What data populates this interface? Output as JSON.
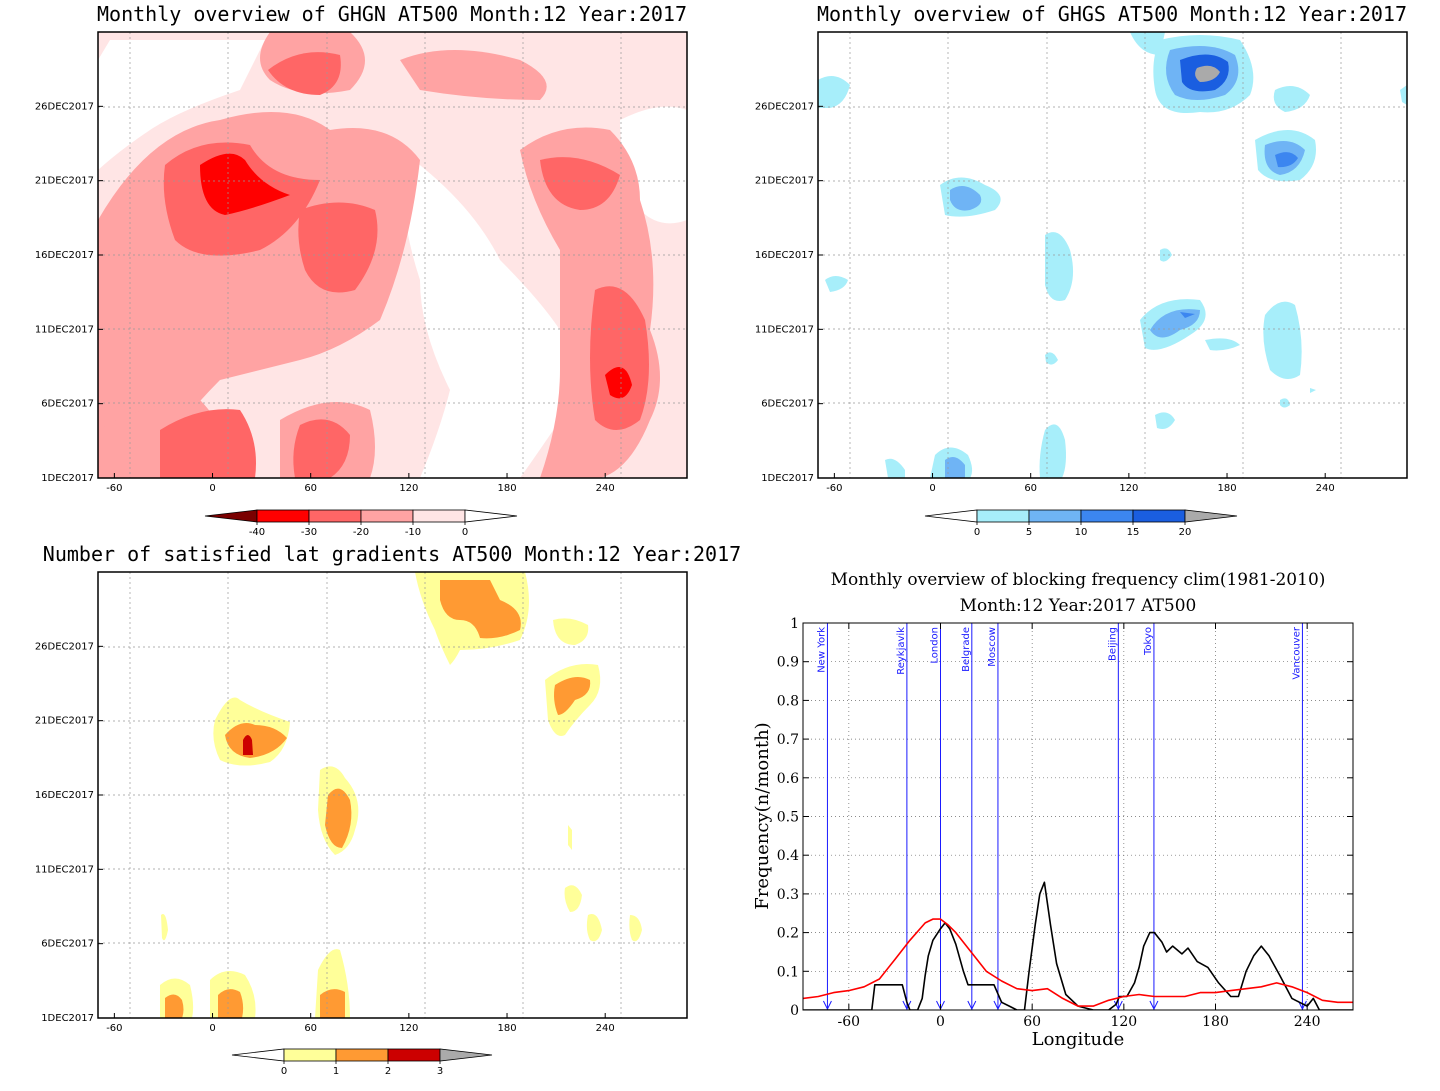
{
  "chart_data": [
    {
      "type": "heatmap",
      "title": "Monthly overview of GHGN AT500 Month:12 Year:2017",
      "x_ticks": [
        "-60",
        "0",
        "60",
        "120",
        "180",
        "240"
      ],
      "y_ticks": [
        "1DEC2017",
        "6DEC2017",
        "11DEC2017",
        "16DEC2017",
        "21DEC2017",
        "26DEC2017"
      ],
      "colorbar": {
        "ticks": [
          "-40",
          "-30",
          "-20",
          "-10",
          "0"
        ],
        "colors": [
          "#7a0000",
          "#ff0000",
          "#ff6666",
          "#ffa3a3",
          "#ffe5e5",
          "#ffffff"
        ]
      },
      "grid": true
    },
    {
      "type": "heatmap",
      "title": "Monthly overview of GHGS AT500 Month:12 Year:2017",
      "x_ticks": [
        "-60",
        "0",
        "60",
        "120",
        "180",
        "240"
      ],
      "y_ticks": [
        "1DEC2017",
        "6DEC2017",
        "11DEC2017",
        "16DEC2017",
        "21DEC2017",
        "26DEC2017"
      ],
      "colorbar": {
        "ticks": [
          "0",
          "5",
          "10",
          "15",
          "20"
        ],
        "colors": [
          "#ffffff",
          "#a7eefa",
          "#6fb4f5",
          "#3c86f0",
          "#1a5ee0",
          "#aaaaaa"
        ]
      },
      "grid": true
    },
    {
      "type": "heatmap",
      "title": "Number of satisfied lat gradients AT500 Month:12 Year:2017",
      "x_ticks": [
        "-60",
        "0",
        "60",
        "120",
        "180",
        "240"
      ],
      "y_ticks": [
        "1DEC2017",
        "6DEC2017",
        "11DEC2017",
        "16DEC2017",
        "21DEC2017",
        "26DEC2017"
      ],
      "colorbar": {
        "ticks": [
          "0",
          "1",
          "2",
          "3"
        ],
        "colors": [
          "#ffffff",
          "#ffff99",
          "#ff9a33",
          "#cc0000",
          "#aaaaaa"
        ]
      },
      "grid": true
    },
    {
      "type": "line",
      "title": "Monthly overview of blocking frequency clim(1981-2010)",
      "subtitle": "Month:12 Year:2017  AT500",
      "xlabel": "Longitude",
      "ylabel": "Frequency(n/month)",
      "xlim": [
        -90,
        270
      ],
      "ylim": [
        0,
        1
      ],
      "x_ticks": [
        "-60",
        "0",
        "60",
        "120",
        "180",
        "240"
      ],
      "y_ticks": [
        "0",
        "0.1",
        "0.2",
        "0.3",
        "0.4",
        "0.5",
        "0.6",
        "0.7",
        "0.8",
        "0.9",
        "1"
      ],
      "grid": true,
      "series": [
        {
          "color": "#000000",
          "x": [
            -90,
            -45,
            -43,
            -35,
            -30,
            -25,
            -22,
            -20,
            -15,
            -12,
            -10,
            -8,
            -5,
            0,
            3,
            6,
            10,
            15,
            18,
            25,
            35,
            40,
            45,
            50,
            55,
            58,
            62,
            65,
            68,
            72,
            76,
            82,
            90,
            100,
            110,
            115,
            117,
            122,
            127,
            130,
            133,
            137,
            140,
            145,
            148,
            152,
            158,
            162,
            168,
            175,
            182,
            190,
            195,
            200,
            205,
            210,
            215,
            222,
            230,
            235,
            240,
            244,
            248,
            270
          ],
          "y": [
            0,
            0,
            0.065,
            0.065,
            0.065,
            0.065,
            0.02,
            0,
            0,
            0.03,
            0.09,
            0.14,
            0.18,
            0.21,
            0.225,
            0.21,
            0.17,
            0.1,
            0.065,
            0.065,
            0.065,
            0.02,
            0.01,
            0,
            0,
            0.1,
            0.22,
            0.3,
            0.33,
            0.22,
            0.12,
            0.04,
            0.01,
            0,
            0,
            0.015,
            0.035,
            0.035,
            0.07,
            0.11,
            0.165,
            0.2,
            0.2,
            0.175,
            0.15,
            0.165,
            0.145,
            0.16,
            0.125,
            0.11,
            0.07,
            0.035,
            0.035,
            0.1,
            0.14,
            0.165,
            0.14,
            0.09,
            0.03,
            0.02,
            0.01,
            0.03,
            0,
            0
          ]
        },
        {
          "color": "#ff0000",
          "x": [
            -90,
            -80,
            -70,
            -60,
            -50,
            -40,
            -30,
            -20,
            -10,
            -5,
            0,
            5,
            10,
            20,
            30,
            40,
            50,
            60,
            70,
            80,
            90,
            100,
            110,
            120,
            130,
            140,
            150,
            160,
            170,
            180,
            190,
            200,
            210,
            220,
            230,
            240,
            250,
            260,
            270
          ],
          "y": [
            0.03,
            0.035,
            0.045,
            0.05,
            0.06,
            0.08,
            0.13,
            0.18,
            0.225,
            0.235,
            0.235,
            0.22,
            0.2,
            0.15,
            0.1,
            0.075,
            0.055,
            0.05,
            0.055,
            0.03,
            0.01,
            0.01,
            0.025,
            0.035,
            0.04,
            0.035,
            0.035,
            0.035,
            0.045,
            0.045,
            0.05,
            0.055,
            0.06,
            0.07,
            0.06,
            0.045,
            0.025,
            0.02,
            0.02
          ]
        }
      ],
      "annotations": [
        {
          "label": "New York",
          "x": -74
        },
        {
          "label": "Reykjavik",
          "x": -22
        },
        {
          "label": "London",
          "x": 0
        },
        {
          "label": "Belgrade",
          "x": 20.5
        },
        {
          "label": "Moscow",
          "x": 37.6
        },
        {
          "label": "Beijing",
          "x": 116.4
        },
        {
          "label": "Tokyo",
          "x": 139.7
        },
        {
          "label": "Vancouver",
          "x": 236.9
        }
      ]
    }
  ]
}
